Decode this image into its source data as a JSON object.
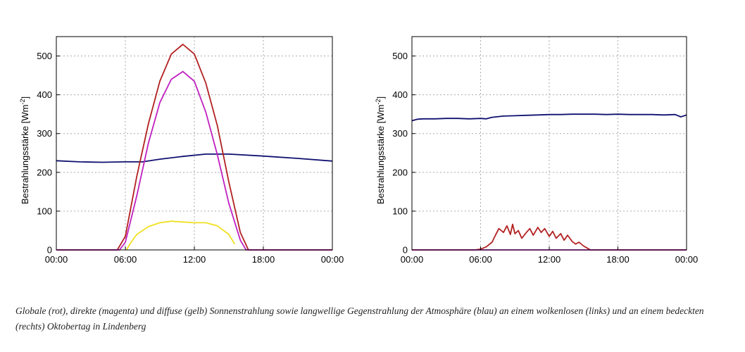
{
  "caption": "Globale (rot), direkte (magenta) und diffuse (gelb) Sonnenstrahlung sowie langwellige Gegenstrahlung der Atmosphäre (blau) an einem wolkenlosen (links) und an einem bedeckten (rechts) Oktobertag in Lindenberg",
  "colors": {
    "global": "#b22020",
    "direct": "#c020c0",
    "diffuse": "#f0e020",
    "longwave": "#101070"
  },
  "chart_data": [
    {
      "type": "line",
      "title": "",
      "xlabel": "",
      "ylabel": "Bestrahlungsstärke [Wm",
      "ylabel_sup": "-2",
      "ylabel_tail": "]",
      "xlim": [
        0,
        24
      ],
      "ylim": [
        0,
        550
      ],
      "grid": true,
      "xtick_values": [
        0,
        6,
        12,
        18,
        24
      ],
      "xtick_labels": [
        "00:00",
        "06:00",
        "12:00",
        "18:00",
        "00:00"
      ],
      "ytick_values": [
        0,
        100,
        200,
        300,
        400,
        500
      ],
      "ytick_labels": [
        "0",
        "100",
        "200",
        "300",
        "400",
        "500"
      ],
      "series": [
        {
          "key": "longwave",
          "x": [
            0,
            2,
            4,
            6,
            7.5,
            9,
            11,
            13,
            15,
            18,
            21,
            24
          ],
          "y": [
            230,
            227,
            226,
            227,
            227,
            234,
            241,
            247,
            247,
            242,
            236,
            229
          ]
        },
        {
          "key": "global",
          "x": [
            0,
            5.3,
            6,
            7,
            8,
            9,
            10,
            11,
            12,
            13,
            14,
            15,
            16,
            16.7,
            24
          ],
          "y": [
            0,
            0,
            35,
            190,
            325,
            435,
            505,
            530,
            505,
            430,
            320,
            175,
            45,
            0,
            0
          ]
        },
        {
          "key": "direct",
          "x": [
            0,
            5.5,
            6,
            7,
            8,
            9,
            10,
            11,
            12,
            13,
            14,
            15,
            16,
            16.5,
            24
          ],
          "y": [
            0,
            0,
            20,
            140,
            275,
            380,
            440,
            460,
            435,
            355,
            245,
            120,
            25,
            0,
            0
          ]
        },
        {
          "key": "diffuse",
          "x": [
            6.1,
            6.5,
            7,
            8,
            9,
            10,
            11,
            12,
            13,
            14,
            15,
            15.5
          ],
          "y": [
            0,
            20,
            40,
            60,
            70,
            74,
            72,
            70,
            70,
            62,
            40,
            15
          ]
        }
      ]
    },
    {
      "type": "line",
      "title": "",
      "xlabel": "",
      "ylabel": "Bestrahlungsstärke [Wm",
      "ylabel_sup": "-2",
      "ylabel_tail": "]",
      "xlim": [
        0,
        24
      ],
      "ylim": [
        0,
        550
      ],
      "grid": true,
      "xtick_values": [
        0,
        6,
        12,
        18,
        24
      ],
      "xtick_labels": [
        "00:00",
        "06:00",
        "12:00",
        "18:00",
        "00:00"
      ],
      "ytick_values": [
        0,
        100,
        200,
        300,
        400,
        500
      ],
      "ytick_labels": [
        "0",
        "100",
        "200",
        "300",
        "400",
        "500"
      ],
      "series": [
        {
          "key": "longwave",
          "x": [
            0,
            0.5,
            1,
            2,
            3,
            4,
            5,
            6,
            6.5,
            7,
            8,
            9,
            10,
            11,
            12,
            13,
            14,
            15,
            16,
            17,
            18,
            19,
            20,
            21,
            22,
            23,
            23.5,
            24
          ],
          "y": [
            333,
            337,
            338,
            338,
            339,
            339,
            338,
            339,
            338,
            342,
            345,
            346,
            347,
            348,
            349,
            349,
            350,
            350,
            350,
            349,
            350,
            349,
            349,
            349,
            348,
            349,
            343,
            348
          ]
        },
        {
          "key": "global",
          "x": [
            0,
            5.5,
            6,
            6.5,
            7,
            7.3,
            7.6,
            8,
            8.3,
            8.6,
            8.8,
            9,
            9.3,
            9.6,
            10,
            10.3,
            10.6,
            11,
            11.3,
            11.6,
            12,
            12.3,
            12.6,
            13,
            13.3,
            13.6,
            14,
            14.3,
            14.6,
            15,
            15.3,
            15.6,
            24
          ],
          "y": [
            0,
            0,
            2,
            8,
            20,
            38,
            55,
            45,
            62,
            40,
            66,
            42,
            50,
            30,
            45,
            55,
            38,
            58,
            45,
            55,
            35,
            48,
            30,
            42,
            25,
            38,
            22,
            15,
            20,
            10,
            5,
            0,
            0
          ]
        },
        {
          "key": "direct",
          "x": [
            0,
            24
          ],
          "y": [
            0,
            0
          ]
        }
      ]
    }
  ]
}
